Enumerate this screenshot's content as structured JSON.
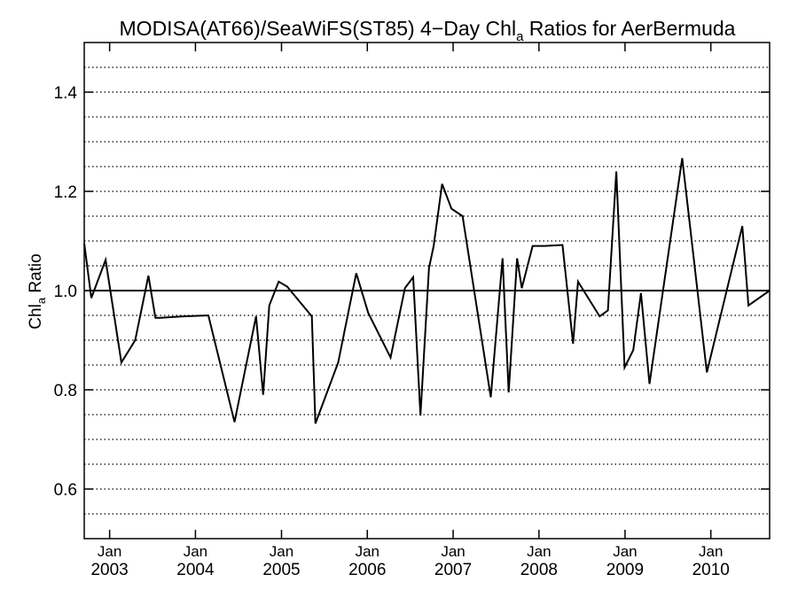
{
  "chart_data": {
    "type": "line",
    "title": {
      "main": "MODISA(AT66)/SeaWiFS(ST85) 4−Day Chl",
      "sub": "a",
      "rest": " Ratios for AerBermuda"
    },
    "ylabel": {
      "main": "Chl",
      "sub": "a",
      "rest": " Ratio"
    },
    "xlim": [
      "2002-09-15",
      "2010-09-08"
    ],
    "ylim": [
      0.5,
      1.5
    ],
    "grid": {
      "y_dotted_step": 0.05,
      "style": "dotted"
    },
    "y_ticks": [
      {
        "value": 0.6,
        "label": "0.6"
      },
      {
        "value": 0.8,
        "label": "0.8"
      },
      {
        "value": 1.0,
        "label": "1.0"
      },
      {
        "value": 1.2,
        "label": "1.2"
      },
      {
        "value": 1.4,
        "label": "1.4"
      }
    ],
    "x_ticks": [
      {
        "date": "2003-01-01",
        "month": "Jan",
        "year": "2003"
      },
      {
        "date": "2004-01-01",
        "month": "Jan",
        "year": "2004"
      },
      {
        "date": "2005-01-01",
        "month": "Jan",
        "year": "2005"
      },
      {
        "date": "2006-01-01",
        "month": "Jan",
        "year": "2006"
      },
      {
        "date": "2007-01-01",
        "month": "Jan",
        "year": "2007"
      },
      {
        "date": "2008-01-01",
        "month": "Jan",
        "year": "2008"
      },
      {
        "date": "2009-01-01",
        "month": "Jan",
        "year": "2009"
      },
      {
        "date": "2010-01-01",
        "month": "Jan",
        "year": "2010"
      }
    ],
    "reference_line": 1.0,
    "series": [
      {
        "color": "#000000",
        "x": [
          "2002-09-15",
          "2002-10-15",
          "2002-12-15",
          "2003-02-20",
          "2003-04-20",
          "2003-06-15",
          "2003-07-15",
          "2003-08-05",
          "2003-11-10",
          "2004-02-25",
          "2004-06-15",
          "2004-09-15",
          "2004-10-15",
          "2004-11-10",
          "2004-12-20",
          "2005-01-25",
          "2005-05-10",
          "2005-05-25",
          "2005-08-30",
          "2005-11-15",
          "2006-01-05",
          "2006-04-10",
          "2006-06-10",
          "2006-07-15",
          "2006-08-15",
          "2006-09-20",
          "2006-10-10",
          "2006-11-15",
          "2006-12-25",
          "2007-02-10",
          "2007-06-10",
          "2007-07-30",
          "2007-08-25",
          "2007-09-30",
          "2007-10-20",
          "2007-12-05",
          "2008-01-25",
          "2008-04-10",
          "2008-05-25",
          "2008-06-15",
          "2008-09-15",
          "2008-10-20",
          "2008-11-25",
          "2008-12-30",
          "2009-02-05",
          "2009-03-10",
          "2009-04-15",
          "2009-09-01",
          "2009-12-15",
          "2010-05-15",
          "2010-06-10",
          "2010-09-08"
        ],
        "y": [
          1.095,
          0.985,
          1.062,
          0.855,
          0.9,
          1.03,
          0.945,
          0.945,
          0.948,
          0.95,
          0.735,
          0.948,
          0.79,
          0.97,
          1.018,
          1.008,
          0.948,
          0.732,
          0.855,
          1.035,
          0.955,
          0.865,
          1.005,
          1.027,
          0.748,
          1.045,
          1.09,
          1.215,
          1.165,
          1.15,
          0.785,
          1.065,
          0.795,
          1.065,
          1.005,
          1.09,
          1.09,
          1.092,
          0.893,
          1.018,
          0.948,
          0.96,
          1.24,
          0.845,
          0.88,
          0.995,
          0.812,
          1.267,
          0.835,
          1.13,
          0.97,
          1.0
        ]
      }
    ]
  }
}
